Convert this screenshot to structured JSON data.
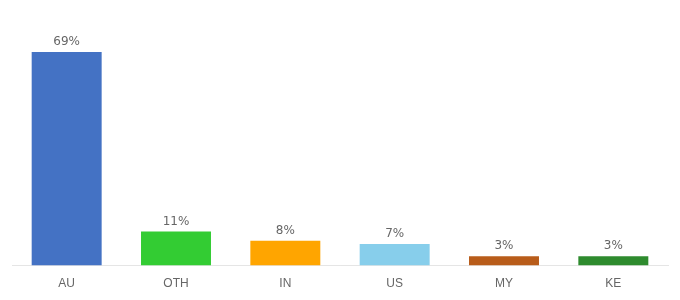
{
  "chart_data": {
    "type": "bar",
    "categories": [
      "AU",
      "OTH",
      "IN",
      "US",
      "MY",
      "KE"
    ],
    "values": [
      69,
      11,
      8,
      7,
      3,
      3
    ],
    "value_labels": [
      "69%",
      "11%",
      "8%",
      "7%",
      "3%",
      "3%"
    ],
    "colors": [
      "#4472c4",
      "#33cc33",
      "#ffa500",
      "#87ceeb",
      "#b85c1a",
      "#2e8b2e"
    ],
    "ylim": [
      0,
      78
    ],
    "grid": false,
    "tick_labels": "x"
  }
}
